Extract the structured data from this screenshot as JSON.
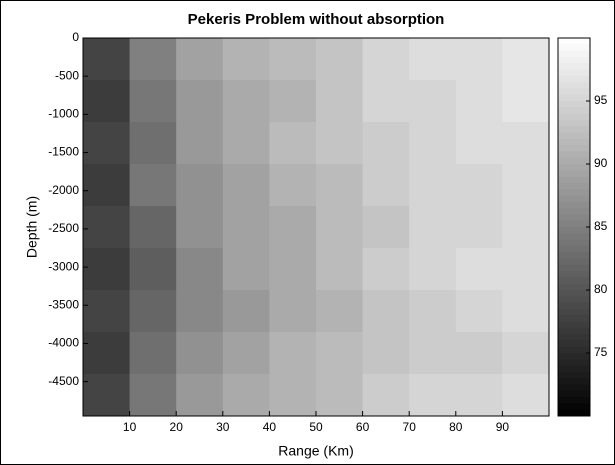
{
  "chart_data": {
    "type": "contour",
    "title": "Pekeris Problem without absorption",
    "x_label": "Range (Km)",
    "y_label": "Depth (m)",
    "xlim": [
      0,
      100
    ],
    "xticks": [
      10,
      20,
      30,
      40,
      50,
      60,
      70,
      80,
      90
    ],
    "ylim": [
      -4950,
      0
    ],
    "yticks": [
      0,
      -500,
      -1000,
      -1500,
      -2000,
      -2500,
      -3000,
      -3500,
      -4000,
      -4500
    ],
    "clim": [
      70,
      100
    ],
    "cticks": [
      75,
      80,
      85,
      90,
      95
    ],
    "colormap": "gray",
    "z": [
      [
        78,
        85,
        89,
        91,
        92,
        93,
        95,
        96,
        96,
        97
      ],
      [
        77,
        84,
        88,
        90,
        91,
        93,
        95,
        95,
        96,
        97
      ],
      [
        78,
        83,
        88,
        90,
        92,
        93,
        94,
        95,
        96,
        96
      ],
      [
        77,
        84,
        87,
        89,
        91,
        92,
        94,
        95,
        95,
        96
      ],
      [
        78,
        82,
        87,
        89,
        90,
        92,
        93,
        95,
        95,
        96
      ],
      [
        77,
        81,
        86,
        89,
        90,
        92,
        94,
        95,
        96,
        96
      ],
      [
        78,
        82,
        86,
        88,
        90,
        91,
        93,
        94,
        95,
        96
      ],
      [
        77,
        83,
        87,
        89,
        91,
        92,
        93,
        94,
        94,
        95
      ],
      [
        78,
        84,
        88,
        90,
        91,
        92,
        94,
        95,
        95,
        96
      ]
    ]
  }
}
